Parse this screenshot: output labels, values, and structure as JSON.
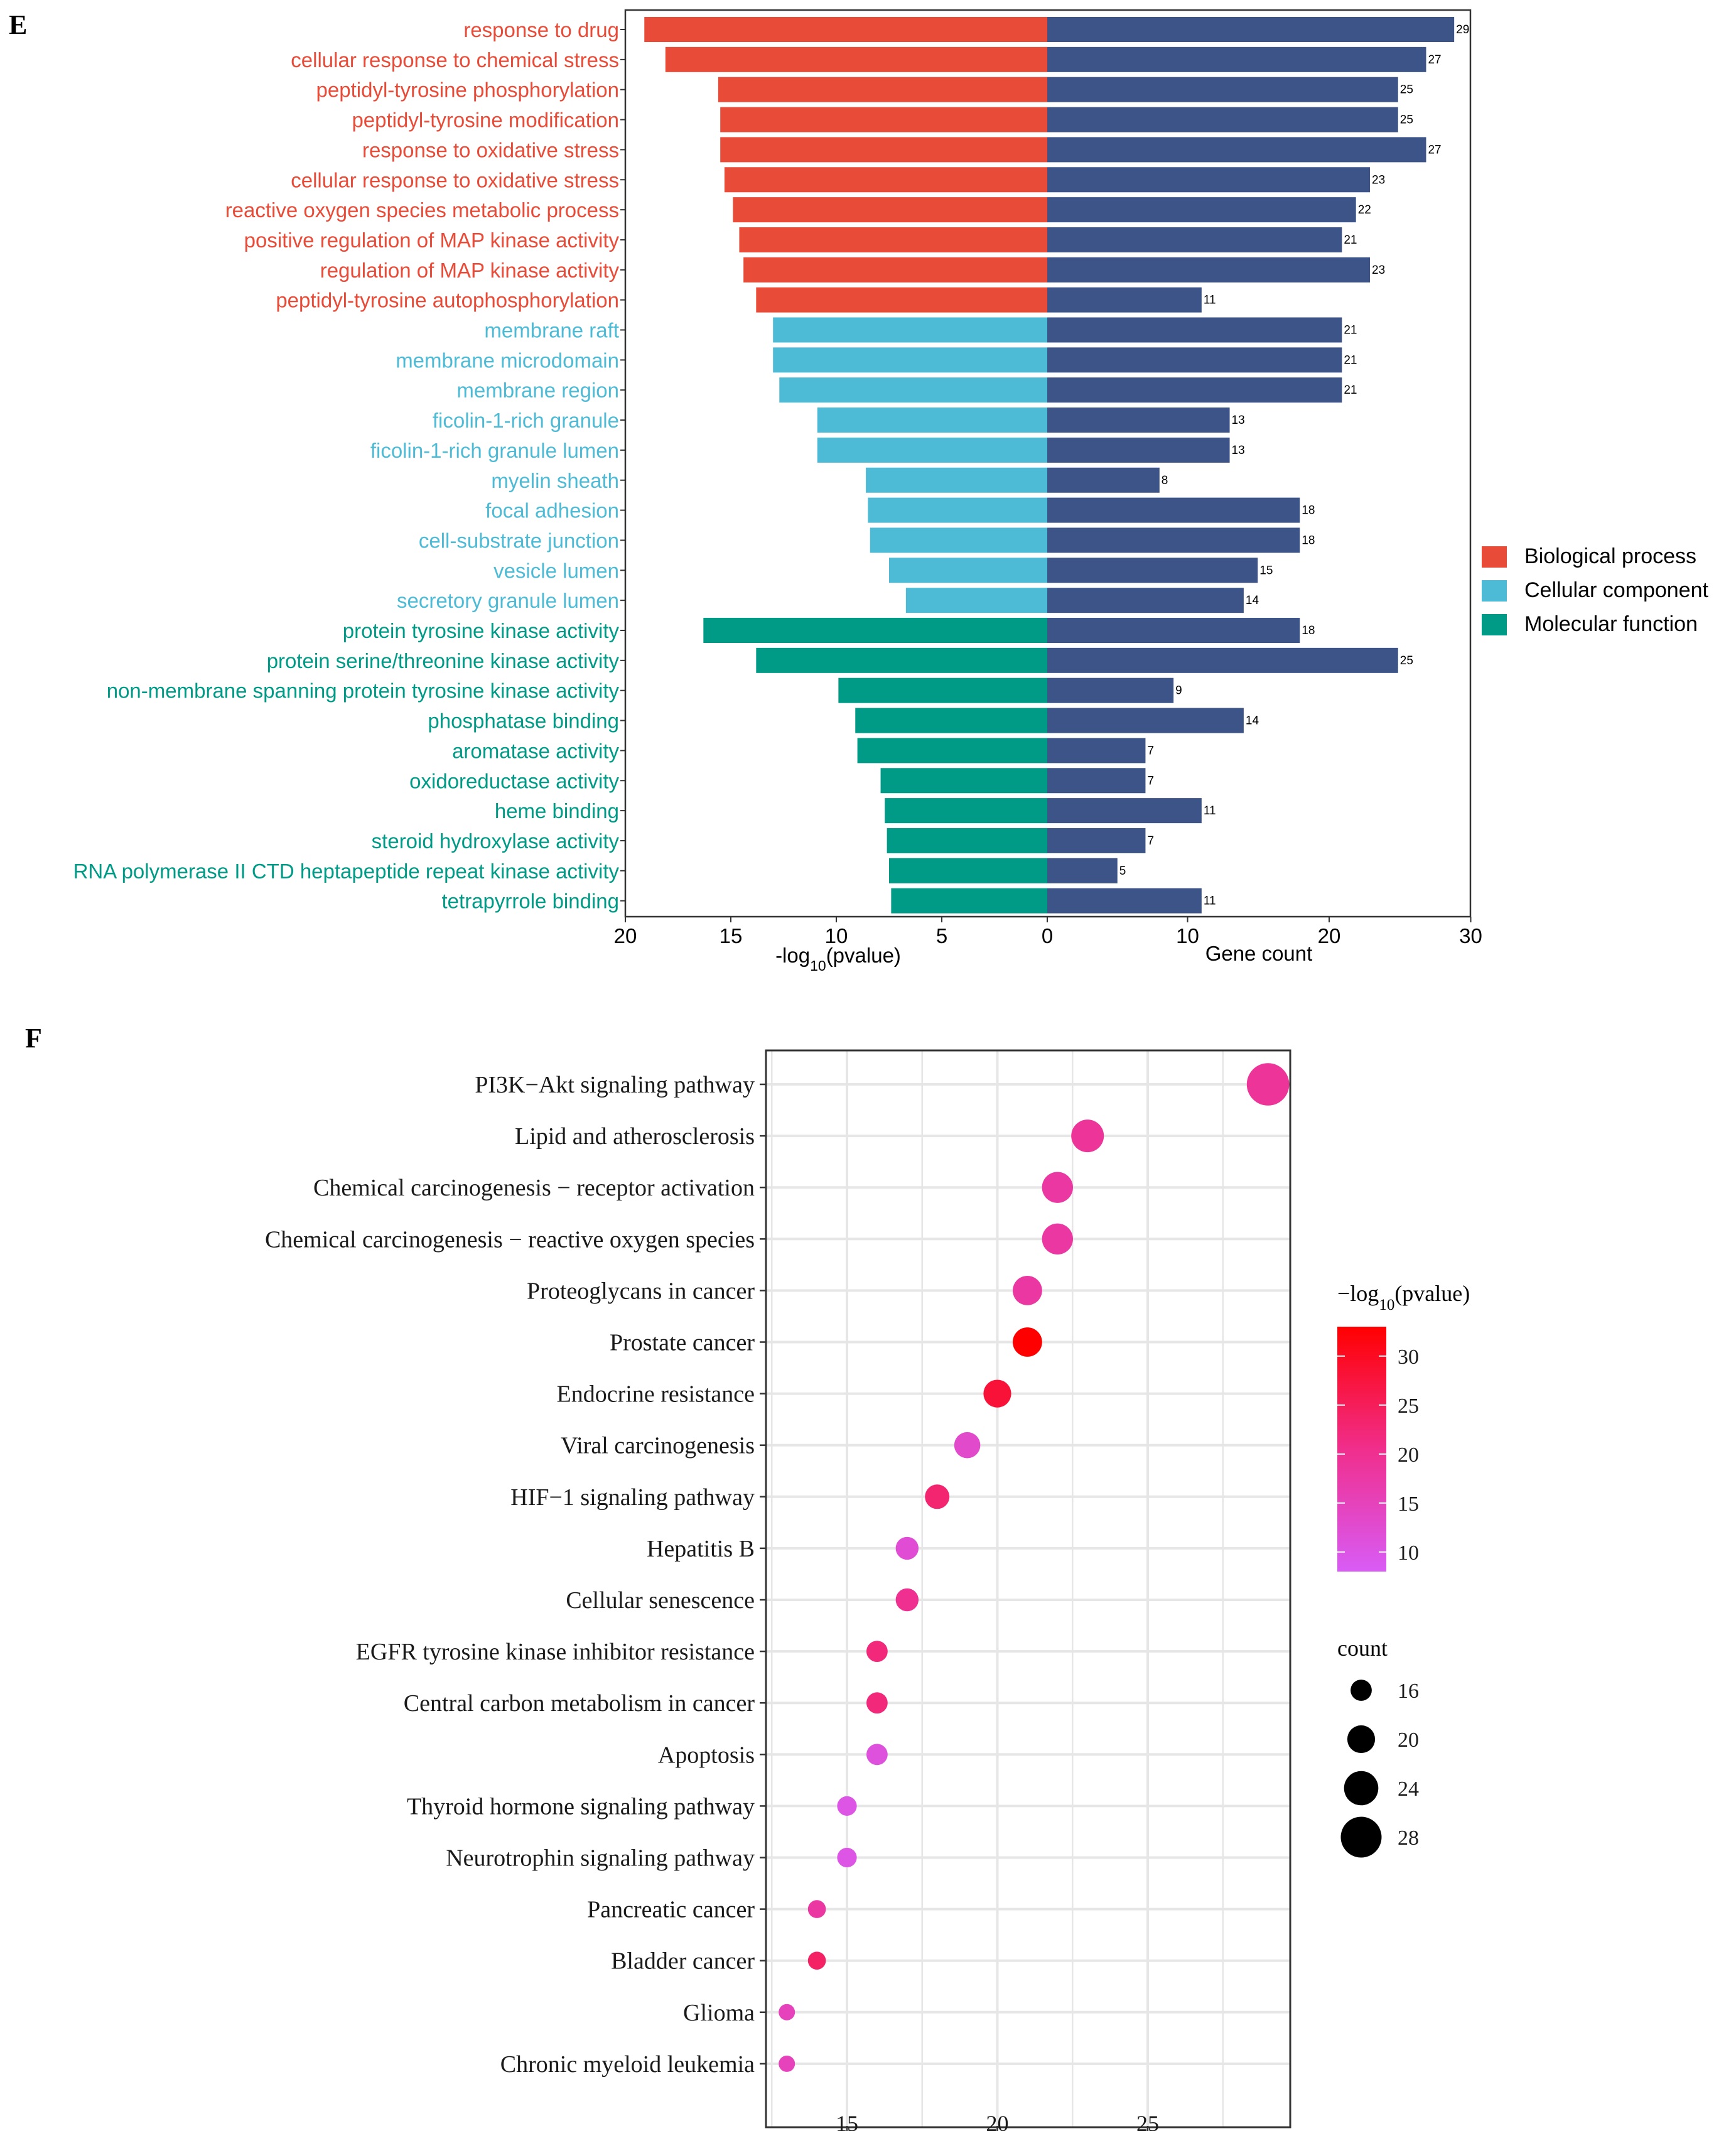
{
  "panel_e": {
    "panel_label": "E",
    "x_label_left": "-log",
    "x_label_left_sub": "10",
    "x_label_left_tail": "(pvalue)",
    "x_label_right": "Gene count",
    "legend_entries": [
      "Biological process",
      "Cellular component",
      "Molecular function"
    ]
  },
  "panel_f": {
    "panel_label": "F",
    "colorbar_title_pre": "−log",
    "colorbar_title_sub": "10",
    "colorbar_title_post": "(pvalue)",
    "size_legend_title": "count"
  },
  "chart_data": [
    {
      "type": "bar",
      "left_axis": {
        "label": "-log10(pvalue)",
        "lim": [
          20,
          0
        ],
        "ticks": [
          20,
          15,
          10,
          5,
          0
        ]
      },
      "right_axis": {
        "label": "Gene count",
        "lim": [
          0,
          30
        ],
        "ticks": [
          0,
          10,
          20,
          30
        ]
      },
      "categories_colors": {
        "Biological process": "#e84b37",
        "Cellular component": "#4dbbd5",
        "Molecular function": "#009b87"
      },
      "count_color": "#3c5488",
      "terms": [
        {
          "label": "response to drug",
          "category": "Biological process",
          "neglog10p": 19.1,
          "count": 29
        },
        {
          "label": "cellular response to chemical stress",
          "category": "Biological process",
          "neglog10p": 18.1,
          "count": 27
        },
        {
          "label": "peptidyl-tyrosine phosphorylation",
          "category": "Biological process",
          "neglog10p": 15.6,
          "count": 25
        },
        {
          "label": "peptidyl-tyrosine modification",
          "category": "Biological process",
          "neglog10p": 15.5,
          "count": 25
        },
        {
          "label": "response to oxidative stress",
          "category": "Biological process",
          "neglog10p": 15.5,
          "count": 27
        },
        {
          "label": "cellular response to oxidative stress",
          "category": "Biological process",
          "neglog10p": 15.3,
          "count": 23
        },
        {
          "label": "reactive oxygen species metabolic process",
          "category": "Biological process",
          "neglog10p": 14.9,
          "count": 22
        },
        {
          "label": "positive regulation of MAP kinase activity",
          "category": "Biological process",
          "neglog10p": 14.6,
          "count": 21
        },
        {
          "label": "regulation of MAP kinase activity",
          "category": "Biological process",
          "neglog10p": 14.4,
          "count": 23
        },
        {
          "label": "peptidyl-tyrosine autophosphorylation",
          "category": "Biological process",
          "neglog10p": 13.8,
          "count": 11
        },
        {
          "label": "membrane raft",
          "category": "Cellular component",
          "neglog10p": 13.0,
          "count": 21
        },
        {
          "label": "membrane microdomain",
          "category": "Cellular component",
          "neglog10p": 13.0,
          "count": 21
        },
        {
          "label": "membrane region",
          "category": "Cellular component",
          "neglog10p": 12.7,
          "count": 21
        },
        {
          "label": "ficolin-1-rich granule",
          "category": "Cellular component",
          "neglog10p": 10.9,
          "count": 13
        },
        {
          "label": "ficolin-1-rich granule lumen",
          "category": "Cellular component",
          "neglog10p": 10.9,
          "count": 13
        },
        {
          "label": "myelin sheath",
          "category": "Cellular component",
          "neglog10p": 8.6,
          "count": 8
        },
        {
          "label": "focal adhesion",
          "category": "Cellular component",
          "neglog10p": 8.5,
          "count": 18
        },
        {
          "label": "cell-substrate junction",
          "category": "Cellular component",
          "neglog10p": 8.4,
          "count": 18
        },
        {
          "label": "vesicle lumen",
          "category": "Cellular component",
          "neglog10p": 7.5,
          "count": 15
        },
        {
          "label": "secretory granule lumen",
          "category": "Cellular component",
          "neglog10p": 6.7,
          "count": 14
        },
        {
          "label": "protein tyrosine kinase activity",
          "category": "Molecular function",
          "neglog10p": 16.3,
          "count": 18
        },
        {
          "label": "protein serine/threonine kinase activity",
          "category": "Molecular function",
          "neglog10p": 13.8,
          "count": 25
        },
        {
          "label": "non-membrane spanning protein tyrosine kinase activity",
          "category": "Molecular function",
          "neglog10p": 9.9,
          "count": 9
        },
        {
          "label": "phosphatase binding",
          "category": "Molecular function",
          "neglog10p": 9.1,
          "count": 14
        },
        {
          "label": "aromatase activity",
          "category": "Molecular function",
          "neglog10p": 9.0,
          "count": 7
        },
        {
          "label": "oxidoreductase activity",
          "category": "Molecular function",
          "neglog10p": 7.9,
          "count": 7
        },
        {
          "label": "heme binding",
          "category": "Molecular function",
          "neglog10p": 7.7,
          "count": 11
        },
        {
          "label": "steroid hydroxylase activity",
          "category": "Molecular function",
          "neglog10p": 7.6,
          "count": 7
        },
        {
          "label": "RNA polymerase II CTD heptapeptide repeat kinase activity",
          "category": "Molecular function",
          "neglog10p": 7.5,
          "count": 5
        },
        {
          "label": "tetrapyrrole binding",
          "category": "Molecular function",
          "neglog10p": 7.4,
          "count": 11
        }
      ]
    },
    {
      "type": "scatter",
      "x_ticks": [
        15,
        20,
        25
      ],
      "xlim": [
        12.3,
        30.0
      ],
      "grid": true,
      "color_scale": {
        "ticks": [
          30,
          25,
          20,
          15,
          10
        ],
        "lim": [
          8,
          33
        ],
        "low": "#d85cf6",
        "high": "#ff0000"
      },
      "size_scale": {
        "ticks": [
          16,
          20,
          24,
          28
        ],
        "lim": [
          13,
          29
        ]
      },
      "points": [
        {
          "label": "PI3K−Akt signaling pathway",
          "count": 29,
          "neglog10p": 19
        },
        {
          "label": "Lipid and atherosclerosis",
          "count": 23,
          "neglog10p": 19
        },
        {
          "label": "Chemical carcinogenesis − receptor activation",
          "count": 22,
          "neglog10p": 18
        },
        {
          "label": "Chemical carcinogenesis − reactive oxygen species",
          "count": 22,
          "neglog10p": 18
        },
        {
          "label": "Proteoglycans in cancer",
          "count": 21,
          "neglog10p": 18
        },
        {
          "label": "Prostate cancer",
          "count": 21,
          "neglog10p": 33
        },
        {
          "label": "Endocrine resistance",
          "count": 20,
          "neglog10p": 28
        },
        {
          "label": "Viral carcinogenesis",
          "count": 19,
          "neglog10p": 13
        },
        {
          "label": "HIF−1 signaling pathway",
          "count": 18,
          "neglog10p": 23
        },
        {
          "label": "Hepatitis B",
          "count": 17,
          "neglog10p": 12
        },
        {
          "label": "Cellular senescence",
          "count": 17,
          "neglog10p": 20
        },
        {
          "label": "EGFR tyrosine kinase inhibitor resistance",
          "count": 16,
          "neglog10p": 22
        },
        {
          "label": "Central carbon metabolism in cancer",
          "count": 16,
          "neglog10p": 22
        },
        {
          "label": "Apoptosis",
          "count": 16,
          "neglog10p": 11
        },
        {
          "label": "Thyroid hormone signaling pathway",
          "count": 15,
          "neglog10p": 10
        },
        {
          "label": "Neurotrophin signaling pathway",
          "count": 15,
          "neglog10p": 10
        },
        {
          "label": "Pancreatic cancer",
          "count": 14,
          "neglog10p": 18
        },
        {
          "label": "Bladder cancer",
          "count": 14,
          "neglog10p": 24
        },
        {
          "label": "Glioma",
          "count": 13,
          "neglog10p": 15
        },
        {
          "label": "Chronic myeloid leukemia",
          "count": 13,
          "neglog10p": 15
        }
      ]
    }
  ]
}
